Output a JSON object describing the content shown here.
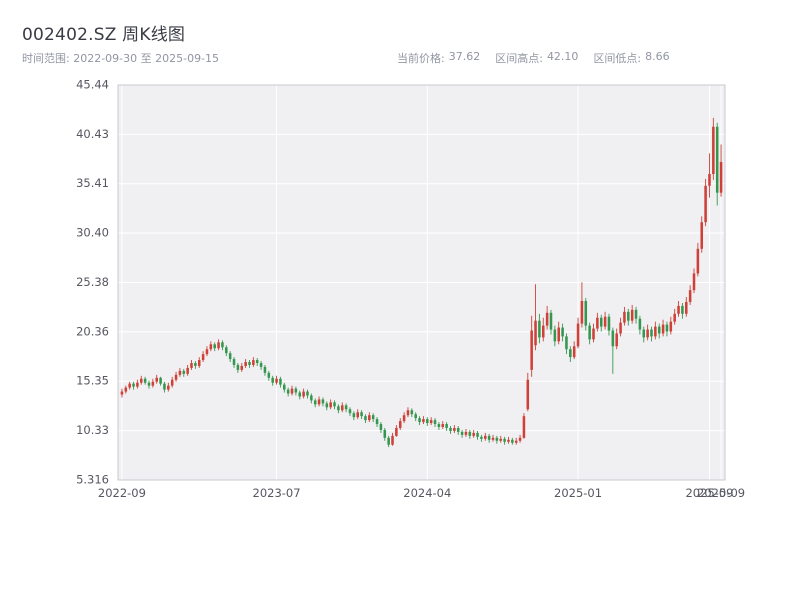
{
  "header": {
    "title": "002402.SZ 周K线图",
    "subtitle_left": "时间范围: 2022-09-30 至 2025-09-15",
    "stats": [
      {
        "label": "当前价格:",
        "value": "37.62"
      },
      {
        "label": "区间高点:",
        "value": "42.10"
      },
      {
        "label": "区间低点:",
        "value": "8.66"
      }
    ]
  },
  "chart_data": {
    "type": "candlestick",
    "symbol": "002402.SZ",
    "interval": "weekly",
    "title": "002402.SZ 周K线图",
    "date_range": [
      "2022-09-30",
      "2025-09-15"
    ],
    "current_price": 37.62,
    "range_high": 42.1,
    "range_low": 8.66,
    "up_color": "#cf4138",
    "down_color": "#35974f",
    "y_min": 5.316,
    "y_max": 45.44,
    "grid": true,
    "y_ticks": [
      "45.44",
      "40.43",
      "35.41",
      "30.40",
      "25.38",
      "20.36",
      "15.35",
      "10.33",
      "5.316"
    ],
    "x_ticks": [
      {
        "week": 0,
        "label": "2022-09"
      },
      {
        "week": 40,
        "label": "2023-07"
      },
      {
        "week": 79,
        "label": "2024-04"
      },
      {
        "week": 118,
        "label": "2025-01"
      },
      {
        "week": 152,
        "label": "2025-09"
      },
      {
        "week": 155,
        "label": "2025-09"
      }
    ],
    "candles": [
      [
        14.0,
        14.6,
        13.7,
        14.3
      ],
      [
        14.3,
        14.9,
        14.1,
        14.7
      ],
      [
        14.7,
        15.3,
        14.5,
        15.1
      ],
      [
        15.1,
        15.3,
        14.5,
        14.8
      ],
      [
        14.8,
        15.5,
        14.6,
        15.2
      ],
      [
        15.2,
        15.9,
        15.0,
        15.6
      ],
      [
        15.6,
        15.8,
        15.0,
        15.2
      ],
      [
        15.2,
        15.4,
        14.6,
        14.9
      ],
      [
        14.9,
        15.6,
        14.7,
        15.3
      ],
      [
        15.3,
        16.0,
        15.1,
        15.7
      ],
      [
        15.7,
        15.8,
        14.9,
        15.1
      ],
      [
        15.1,
        15.3,
        14.2,
        14.5
      ],
      [
        14.5,
        15.2,
        14.3,
        14.9
      ],
      [
        14.9,
        15.8,
        14.7,
        15.5
      ],
      [
        15.5,
        16.3,
        15.3,
        16.0
      ],
      [
        16.0,
        16.7,
        15.8,
        16.4
      ],
      [
        16.4,
        16.6,
        15.8,
        16.1
      ],
      [
        16.1,
        17.0,
        15.9,
        16.7
      ],
      [
        16.7,
        17.5,
        16.5,
        17.2
      ],
      [
        17.2,
        17.4,
        16.6,
        16.9
      ],
      [
        16.9,
        17.8,
        16.7,
        17.5
      ],
      [
        17.5,
        18.4,
        17.3,
        18.1
      ],
      [
        18.1,
        18.9,
        17.9,
        18.6
      ],
      [
        18.6,
        19.4,
        18.4,
        19.1
      ],
      [
        19.1,
        19.3,
        18.4,
        18.7
      ],
      [
        18.7,
        19.6,
        18.5,
        19.3
      ],
      [
        19.3,
        19.5,
        18.5,
        18.8
      ],
      [
        18.8,
        19.0,
        17.9,
        18.2
      ],
      [
        18.2,
        18.4,
        17.3,
        17.6
      ],
      [
        17.6,
        17.8,
        16.7,
        17.0
      ],
      [
        17.0,
        17.2,
        16.2,
        16.5
      ],
      [
        16.5,
        17.2,
        16.3,
        16.9
      ],
      [
        16.9,
        17.6,
        16.7,
        17.3
      ],
      [
        17.3,
        17.5,
        16.7,
        17.0
      ],
      [
        17.0,
        17.8,
        16.8,
        17.5
      ],
      [
        17.5,
        17.7,
        16.9,
        17.2
      ],
      [
        17.2,
        17.4,
        16.5,
        16.8
      ],
      [
        16.8,
        17.0,
        15.9,
        16.2
      ],
      [
        16.2,
        16.4,
        15.4,
        15.7
      ],
      [
        15.7,
        15.9,
        14.9,
        15.2
      ],
      [
        15.2,
        15.9,
        15.0,
        15.6
      ],
      [
        15.6,
        15.8,
        14.7,
        15.0
      ],
      [
        15.0,
        15.2,
        14.2,
        14.5
      ],
      [
        14.5,
        14.7,
        13.8,
        14.1
      ],
      [
        14.1,
        14.9,
        13.9,
        14.6
      ],
      [
        14.6,
        14.8,
        13.9,
        14.2
      ],
      [
        14.2,
        14.4,
        13.5,
        13.8
      ],
      [
        13.8,
        14.6,
        13.6,
        14.3
      ],
      [
        14.3,
        14.5,
        13.6,
        13.9
      ],
      [
        13.9,
        14.1,
        13.1,
        13.4
      ],
      [
        13.4,
        13.6,
        12.7,
        13.0
      ],
      [
        13.0,
        13.8,
        12.8,
        13.5
      ],
      [
        13.5,
        13.7,
        12.8,
        13.1
      ],
      [
        13.1,
        13.3,
        12.4,
        12.7
      ],
      [
        12.7,
        13.5,
        12.5,
        13.2
      ],
      [
        13.2,
        13.4,
        12.5,
        12.8
      ],
      [
        12.8,
        13.0,
        12.1,
        12.4
      ],
      [
        12.4,
        13.2,
        12.2,
        12.9
      ],
      [
        12.9,
        13.1,
        12.2,
        12.5
      ],
      [
        12.5,
        12.7,
        11.8,
        12.1
      ],
      [
        12.1,
        12.3,
        11.4,
        11.7
      ],
      [
        11.7,
        12.5,
        11.5,
        12.2
      ],
      [
        12.2,
        12.4,
        11.5,
        11.8
      ],
      [
        11.8,
        12.0,
        11.1,
        11.4
      ],
      [
        11.4,
        12.2,
        11.2,
        11.9
      ],
      [
        11.9,
        12.1,
        11.2,
        11.5
      ],
      [
        11.5,
        11.7,
        10.7,
        11.0
      ],
      [
        11.0,
        11.2,
        10.1,
        10.4
      ],
      [
        10.4,
        10.6,
        9.3,
        9.6
      ],
      [
        9.6,
        9.8,
        8.66,
        8.9
      ],
      [
        8.9,
        10.1,
        8.8,
        9.8
      ],
      [
        9.8,
        10.9,
        9.7,
        10.6
      ],
      [
        10.6,
        11.6,
        10.4,
        11.3
      ],
      [
        11.3,
        12.2,
        11.1,
        11.9
      ],
      [
        11.9,
        12.7,
        11.7,
        12.4
      ],
      [
        12.4,
        12.6,
        11.7,
        12.0
      ],
      [
        12.0,
        12.2,
        11.3,
        11.6
      ],
      [
        11.6,
        11.8,
        10.9,
        11.2
      ],
      [
        11.2,
        11.8,
        11.0,
        11.5
      ],
      [
        11.5,
        11.7,
        10.8,
        11.1
      ],
      [
        11.1,
        11.7,
        10.9,
        11.4
      ],
      [
        11.4,
        11.6,
        10.7,
        11.0
      ],
      [
        11.0,
        11.2,
        10.4,
        10.7
      ],
      [
        10.7,
        11.3,
        10.5,
        11.0
      ],
      [
        11.0,
        11.2,
        10.3,
        10.6
      ],
      [
        10.6,
        10.8,
        10.0,
        10.3
      ],
      [
        10.3,
        10.9,
        10.1,
        10.6
      ],
      [
        10.6,
        10.8,
        9.9,
        10.2
      ],
      [
        10.2,
        10.4,
        9.6,
        9.9
      ],
      [
        9.9,
        10.5,
        9.7,
        10.2
      ],
      [
        10.2,
        10.4,
        9.5,
        9.8
      ],
      [
        9.8,
        10.4,
        9.6,
        10.1
      ],
      [
        10.1,
        10.3,
        9.4,
        9.7
      ],
      [
        9.7,
        9.9,
        9.2,
        9.5
      ],
      [
        9.5,
        10.1,
        9.3,
        9.8
      ],
      [
        9.8,
        10.0,
        9.1,
        9.4
      ],
      [
        9.4,
        9.9,
        9.2,
        9.6
      ],
      [
        9.6,
        9.8,
        9.0,
        9.3
      ],
      [
        9.3,
        9.8,
        9.1,
        9.5
      ],
      [
        9.5,
        9.7,
        8.9,
        9.2
      ],
      [
        9.2,
        9.7,
        9.0,
        9.4
      ],
      [
        9.4,
        9.6,
        8.9,
        9.1
      ],
      [
        9.1,
        9.6,
        8.9,
        9.3
      ],
      [
        9.3,
        9.9,
        9.1,
        9.6
      ],
      [
        9.6,
        12.1,
        9.5,
        11.8
      ],
      [
        12.5,
        16.2,
        12.3,
        15.5
      ],
      [
        16.5,
        22.0,
        15.8,
        20.5
      ],
      [
        19.0,
        25.2,
        18.5,
        21.5
      ],
      [
        21.5,
        22.2,
        19.2,
        19.8
      ],
      [
        19.8,
        21.8,
        19.4,
        21.0
      ],
      [
        21.0,
        23.0,
        20.6,
        22.3
      ],
      [
        22.3,
        22.6,
        20.1,
        20.6
      ],
      [
        20.6,
        21.0,
        18.9,
        19.4
      ],
      [
        19.4,
        21.4,
        19.1,
        20.8
      ],
      [
        20.8,
        21.2,
        19.4,
        19.9
      ],
      [
        19.9,
        20.2,
        18.1,
        18.6
      ],
      [
        18.6,
        18.9,
        17.3,
        17.8
      ],
      [
        17.8,
        19.4,
        17.6,
        18.9
      ],
      [
        18.9,
        21.8,
        18.7,
        21.2
      ],
      [
        21.2,
        25.4,
        20.8,
        23.5
      ],
      [
        23.5,
        23.8,
        20.5,
        21.0
      ],
      [
        21.0,
        21.3,
        19.1,
        19.6
      ],
      [
        19.6,
        21.2,
        19.3,
        20.7
      ],
      [
        20.7,
        22.3,
        20.4,
        21.8
      ],
      [
        21.8,
        22.1,
        20.4,
        20.9
      ],
      [
        20.9,
        22.4,
        20.6,
        21.9
      ],
      [
        21.9,
        22.2,
        20.0,
        20.5
      ],
      [
        20.5,
        20.8,
        16.1,
        18.9
      ],
      [
        18.9,
        20.7,
        18.6,
        20.2
      ],
      [
        20.2,
        21.8,
        19.9,
        21.3
      ],
      [
        21.3,
        22.9,
        21.0,
        22.4
      ],
      [
        22.4,
        22.7,
        21.0,
        21.5
      ],
      [
        21.5,
        23.1,
        21.2,
        22.6
      ],
      [
        22.6,
        22.9,
        21.2,
        21.7
      ],
      [
        21.7,
        22.0,
        20.1,
        20.6
      ],
      [
        20.6,
        20.9,
        19.3,
        19.8
      ],
      [
        19.8,
        21.1,
        19.5,
        20.6
      ],
      [
        20.6,
        20.9,
        19.4,
        19.9
      ],
      [
        19.9,
        21.4,
        19.6,
        20.9
      ],
      [
        20.9,
        21.2,
        19.7,
        20.2
      ],
      [
        20.2,
        21.6,
        19.9,
        21.1
      ],
      [
        21.1,
        21.4,
        19.9,
        20.4
      ],
      [
        20.4,
        21.9,
        20.1,
        21.4
      ],
      [
        21.4,
        22.7,
        21.1,
        22.2
      ],
      [
        22.2,
        23.5,
        21.9,
        23.0
      ],
      [
        23.0,
        23.3,
        21.7,
        22.2
      ],
      [
        22.2,
        23.9,
        21.9,
        23.4
      ],
      [
        23.4,
        25.1,
        23.1,
        24.6
      ],
      [
        24.6,
        26.8,
        24.3,
        26.3
      ],
      [
        26.3,
        29.4,
        26.0,
        28.8
      ],
      [
        28.8,
        32.1,
        28.4,
        31.5
      ],
      [
        31.5,
        35.9,
        31.1,
        35.2
      ],
      [
        35.2,
        38.5,
        34.0,
        36.4
      ],
      [
        36.4,
        42.1,
        35.8,
        41.2
      ],
      [
        41.2,
        41.6,
        33.2,
        34.5
      ],
      [
        34.5,
        39.4,
        34.1,
        37.62
      ]
    ]
  }
}
